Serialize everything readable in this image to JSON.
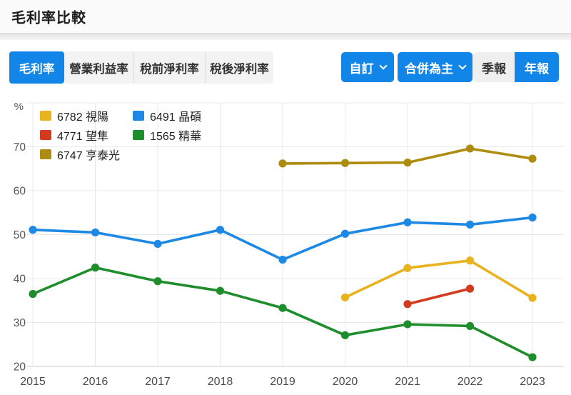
{
  "header": {
    "title": "毛利率比較"
  },
  "colors": {
    "accent_blue": "#1186e8",
    "gridline": "#e8e8e8",
    "axis_line": "#cbcbcb",
    "tick_label": "#555555"
  },
  "tabs": {
    "items": [
      {
        "label": "毛利率",
        "active": true
      },
      {
        "label": "營業利益率",
        "active": false
      },
      {
        "label": "稅前淨利率",
        "active": false
      },
      {
        "label": "稅後淨利率",
        "active": false
      }
    ]
  },
  "controls": {
    "custom_dropdown": {
      "label": "自訂"
    },
    "consolidated_dropdown": {
      "label": "合併為主"
    },
    "period_toggle": {
      "options": [
        {
          "label": "季報",
          "selected": false
        },
        {
          "label": "年報",
          "selected": true
        }
      ]
    }
  },
  "chart_data": {
    "type": "line",
    "title": "毛利率比較",
    "unit_label": "%",
    "x": [
      2015,
      2016,
      2017,
      2018,
      2019,
      2020,
      2021,
      2022,
      2023
    ],
    "xlabel": "",
    "ylabel": "%",
    "ylim": [
      20,
      80
    ],
    "yticks": [
      20,
      30,
      40,
      50,
      60,
      70
    ],
    "grid": true,
    "legend_position": "top-left",
    "series": [
      {
        "name": "6782 視陽",
        "color": "#e8b31e",
        "values": [
          null,
          null,
          null,
          null,
          null,
          35.7,
          42.4,
          44.1,
          35.6
        ]
      },
      {
        "name": "6491 晶碩",
        "color": "#1e88e5",
        "values": [
          51.1,
          50.5,
          47.9,
          51.1,
          44.3,
          50.2,
          52.8,
          52.3,
          53.9
        ]
      },
      {
        "name": "4771 望隼",
        "color": "#d23b1e",
        "values": [
          null,
          null,
          null,
          null,
          null,
          null,
          34.2,
          37.7,
          null
        ]
      },
      {
        "name": "1565 精華",
        "color": "#1e8e2c",
        "values": [
          36.5,
          42.5,
          39.4,
          37.2,
          33.3,
          27.1,
          29.6,
          29.2,
          22.1
        ]
      },
      {
        "name": "6747 亨泰光",
        "color": "#ae8c10",
        "values": [
          null,
          null,
          null,
          null,
          66.2,
          66.3,
          66.4,
          69.6,
          67.3
        ]
      }
    ]
  }
}
